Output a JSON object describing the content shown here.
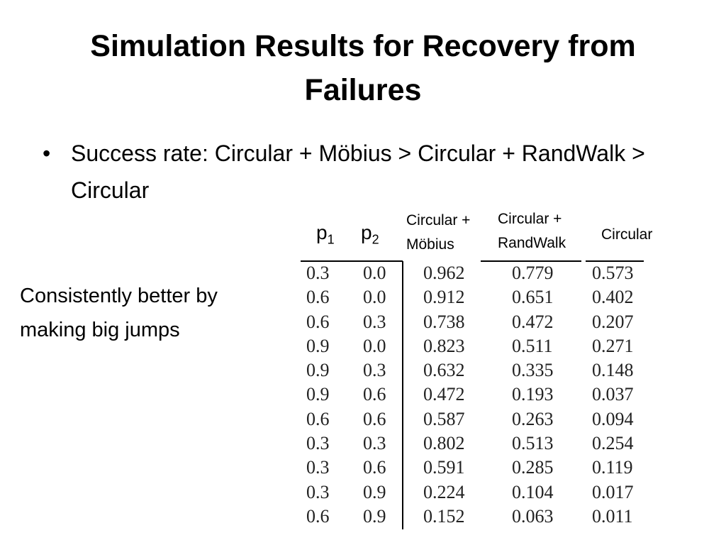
{
  "slide": {
    "title": "Simulation Results for Recovery from Failures",
    "bullet": "Success rate: Circular + Möbius > Circular + RandWalk > Circular",
    "bullet_marker": "•",
    "side_note": "Consistently better by making big jumps"
  },
  "table": {
    "headers": {
      "p1": "p",
      "p1_sub": "1",
      "p2": "p",
      "p2_sub": "2",
      "mobius": "Circular + Möbius",
      "randwalk": "Circular + RandWalk",
      "circular": "Circular"
    },
    "columns": {
      "p1": [
        "0.3",
        "0.6",
        "0.6",
        "0.9",
        "0.9",
        "0.9",
        "0.6",
        "0.3",
        "0.3",
        "0.3",
        "0.6"
      ],
      "p2": [
        "0.0",
        "0.0",
        "0.3",
        "0.0",
        "0.3",
        "0.6",
        "0.6",
        "0.3",
        "0.6",
        "0.9",
        "0.9"
      ],
      "mobius": [
        "0.962",
        "0.912",
        "0.738",
        "0.823",
        "0.632",
        "0.472",
        "0.587",
        "0.802",
        "0.591",
        "0.224",
        "0.152"
      ],
      "randwalk": [
        "0.779",
        "0.651",
        "0.472",
        "0.511",
        "0.335",
        "0.193",
        "0.263",
        "0.513",
        "0.285",
        "0.104",
        "0.063"
      ],
      "circular": [
        "0.573",
        "0.402",
        "0.207",
        "0.271",
        "0.148",
        "0.037",
        "0.094",
        "0.254",
        "0.119",
        "0.017",
        "0.011"
      ]
    }
  }
}
